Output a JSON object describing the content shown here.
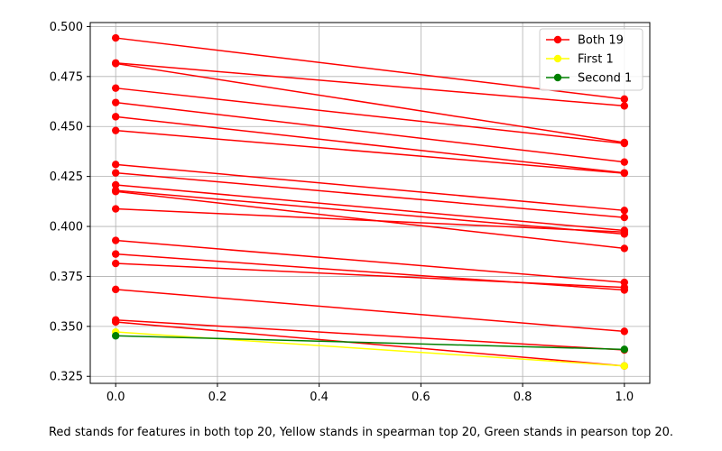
{
  "chart_data": {
    "type": "line",
    "x": [
      0,
      1
    ],
    "xlim": [
      -0.05,
      1.05
    ],
    "ylim": [
      0.3215,
      0.502
    ],
    "xticks": [
      0.0,
      0.2,
      0.4,
      0.6,
      0.8,
      1.0
    ],
    "xtick_labels": [
      "0.0",
      "0.2",
      "0.4",
      "0.6",
      "0.8",
      "1.0"
    ],
    "yticks": [
      0.325,
      0.35,
      0.375,
      0.4,
      0.425,
      0.45,
      0.475,
      0.5
    ],
    "ytick_labels": [
      "0.325",
      "0.350",
      "0.375",
      "0.400",
      "0.425",
      "0.450",
      "0.475",
      "0.500"
    ],
    "grid": true,
    "legend_position": "top-right",
    "colors": {
      "both": "#ff0000",
      "first": "#ffff00",
      "second": "#008000"
    },
    "series": [
      {
        "name": "Both 19",
        "group": "both",
        "segments": [
          [
            0.4943,
            0.4637
          ],
          [
            0.4818,
            0.4603
          ],
          [
            0.4815,
            0.442
          ],
          [
            0.4692,
            0.4415
          ],
          [
            0.462,
            0.4322
          ],
          [
            0.4549,
            0.4268
          ],
          [
            0.448,
            0.4266
          ],
          [
            0.431,
            0.408
          ],
          [
            0.4268,
            0.4045
          ],
          [
            0.4208,
            0.398
          ],
          [
            0.418,
            0.3962
          ],
          [
            0.4175,
            0.389
          ],
          [
            0.4088,
            0.3972
          ],
          [
            0.393,
            0.372
          ],
          [
            0.3862,
            0.3682
          ],
          [
            0.3815,
            0.3695
          ],
          [
            0.3685,
            0.3475
          ],
          [
            0.3532,
            0.3382
          ],
          [
            0.3522,
            0.3302
          ]
        ]
      },
      {
        "name": "First 1",
        "group": "first",
        "segments": [
          [
            0.3472,
            0.3302
          ]
        ]
      },
      {
        "name": "Second 1",
        "group": "second",
        "segments": [
          [
            0.3453,
            0.3385
          ]
        ]
      }
    ]
  },
  "caption": "Red stands for features in both top 20, Yellow stands in spearman top 20, Green stands in pearson top 20."
}
